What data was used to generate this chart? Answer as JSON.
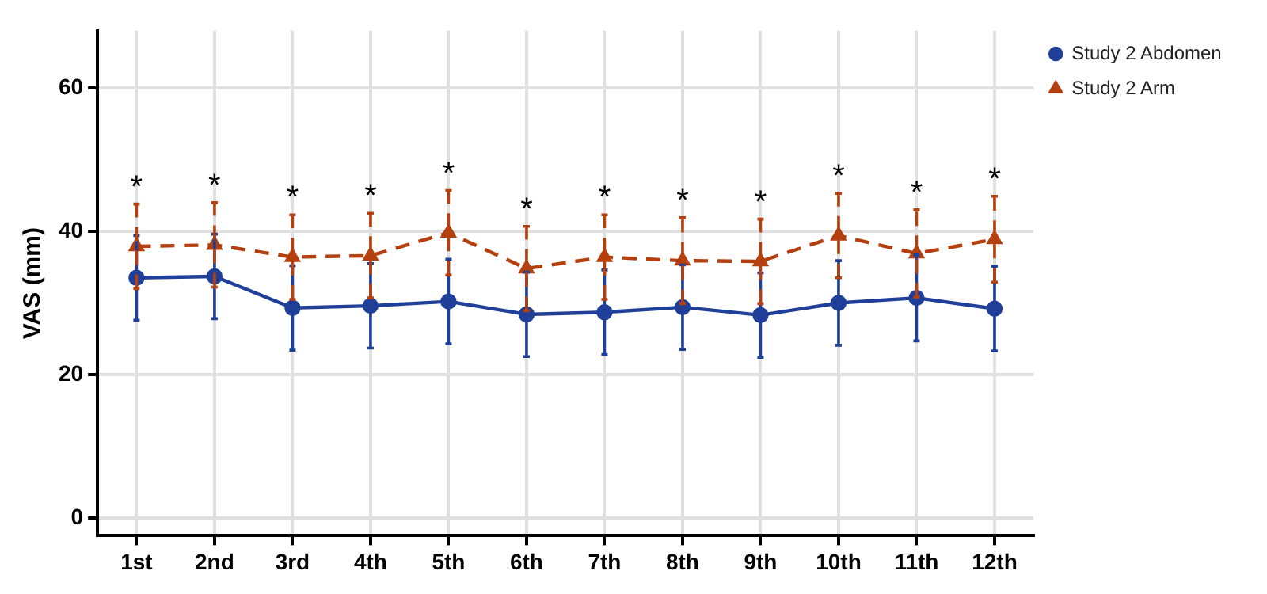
{
  "chart_data": {
    "type": "line",
    "ylabel": "VAS (mm)",
    "categories": [
      "1st",
      "2nd",
      "3rd",
      "4th",
      "5th",
      "6th",
      "7th",
      "8th",
      "9th",
      "10th",
      "11th",
      "12th"
    ],
    "series": [
      {
        "name": "Study 2 Abdomen",
        "color": "#1f3f99",
        "marker": "circle",
        "line_style": "solid",
        "values": [
          33.5,
          33.7,
          29.3,
          29.6,
          30.2,
          28.4,
          28.7,
          29.4,
          28.3,
          30.0,
          30.7,
          29.2
        ],
        "errors": [
          5.9,
          5.9,
          5.9,
          5.9,
          5.9,
          5.9,
          5.9,
          5.9,
          5.9,
          5.9,
          6.0,
          5.9
        ]
      },
      {
        "name": "Study 2 Arm",
        "color": "#b5400f",
        "marker": "triangle",
        "line_style": "dashed",
        "values": [
          37.9,
          38.1,
          36.4,
          36.6,
          39.8,
          34.8,
          36.4,
          35.9,
          35.8,
          39.4,
          36.9,
          38.9
        ],
        "errors": [
          5.9,
          5.9,
          5.9,
          5.9,
          5.9,
          5.9,
          5.9,
          6.0,
          5.9,
          5.9,
          6.1,
          6.0
        ]
      }
    ],
    "ylim": [
      -2.5,
      68
    ],
    "yticks": [
      0,
      20,
      40,
      60
    ],
    "grid": true,
    "legend": "top right",
    "annotations": [
      "*",
      "*",
      "*",
      "*",
      "*",
      "*",
      "*",
      "*",
      "*",
      "*",
      "*",
      "*"
    ]
  }
}
